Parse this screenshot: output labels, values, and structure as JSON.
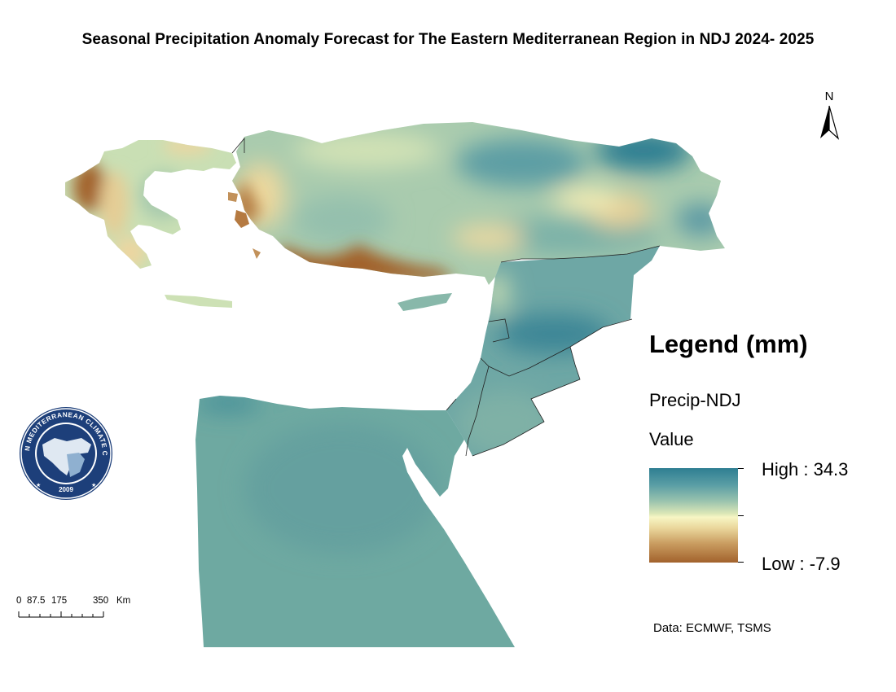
{
  "title": "Seasonal Precipitation Anomaly Forecast for The Eastern Mediterranean Region in NDJ 2024- 2025",
  "north_arrow": {
    "label": "N",
    "icon": "north-arrow-icon"
  },
  "legend": {
    "title": "Legend (mm)",
    "layer": "Precip-NDJ",
    "field": "Value",
    "high_label": "High : 34.3",
    "low_label": "Low : -7.9",
    "high_value": 34.3,
    "low_value": -7.9,
    "colors": {
      "high": "#2f7e92",
      "mid": "#f7f6c4",
      "low": "#a2622c"
    }
  },
  "scale_bar": {
    "labels": [
      "0",
      "87.5",
      "175",
      "350",
      "Km"
    ]
  },
  "source": "Data: ECMWF, TSMS",
  "logo": {
    "text": "EASTERN MEDITERRANEAN CLIMATE CENTRE",
    "year": "2009",
    "icon": "emcc-logo-icon"
  }
}
